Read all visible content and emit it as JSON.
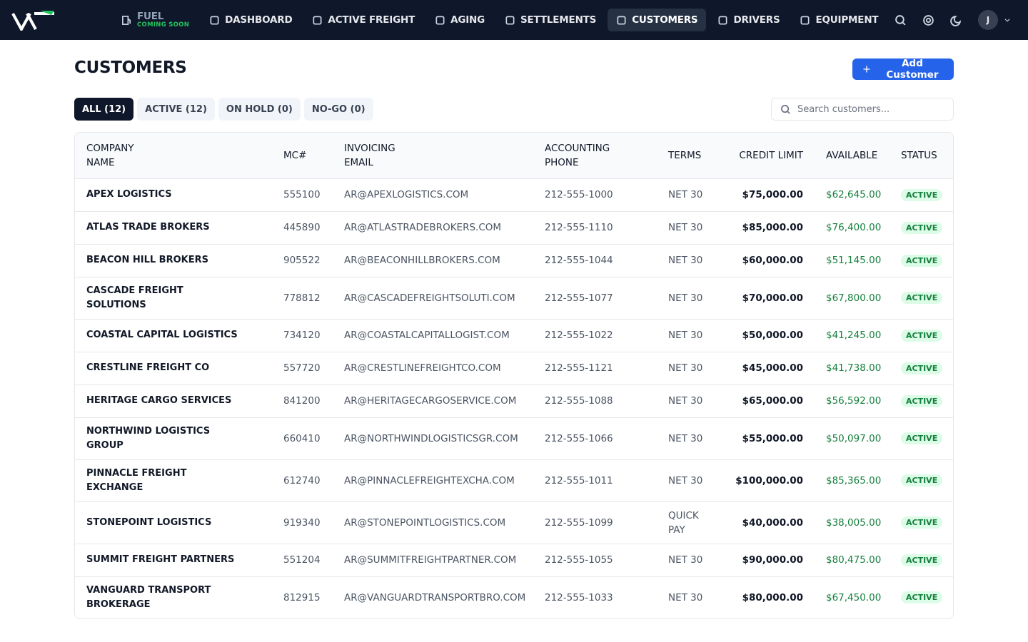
{
  "nav": {
    "fuel": {
      "label": "FUEL",
      "badge": "COMING SOON"
    },
    "items": [
      "DASHBOARD",
      "ACTIVE FREIGHT",
      "AGING",
      "SETTLEMENTS",
      "CUSTOMERS",
      "DRIVERS",
      "EQUIPMENT"
    ],
    "active": "CUSTOMERS",
    "avatar": "J"
  },
  "header": {
    "title": "CUSTOMERS",
    "button": "Add Customer"
  },
  "tabs": [
    "ALL (12)",
    "ACTIVE (12)",
    "ON HOLD (0)",
    "NO-GO (0)"
  ],
  "search": {
    "placeholder": "Search customers..."
  },
  "table": {
    "columns": [
      "COMPANY NAME",
      "MC#",
      "INVOICING EMAIL",
      "ACCOUNTING PHONE",
      "TERMS",
      "CREDIT LIMIT",
      "AVAILABLE",
      "STATUS"
    ],
    "rows": [
      [
        "APEX LOGISTICS",
        "555100",
        "AR@APEXLOGISTICS.COM",
        "212-555-1000",
        "NET 30",
        "$75,000.00",
        "$62,645.00",
        "ACTIVE"
      ],
      [
        "ATLAS TRADE BROKERS",
        "445890",
        "AR@ATLASTRADEBROKERS.COM",
        "212-555-1110",
        "NET 30",
        "$85,000.00",
        "$76,400.00",
        "ACTIVE"
      ],
      [
        "BEACON HILL BROKERS",
        "905522",
        "AR@BEACONHILLBROKERS.COM",
        "212-555-1044",
        "NET 30",
        "$60,000.00",
        "$51,145.00",
        "ACTIVE"
      ],
      [
        "CASCADE FREIGHT SOLUTIONS",
        "778812",
        "AR@CASCADEFREIGHTSOLUTI.COM",
        "212-555-1077",
        "NET 30",
        "$70,000.00",
        "$67,800.00",
        "ACTIVE"
      ],
      [
        "COASTAL CAPITAL LOGISTICS",
        "734120",
        "AR@COASTALCAPITALLOGIST.COM",
        "212-555-1022",
        "NET 30",
        "$50,000.00",
        "$41,245.00",
        "ACTIVE"
      ],
      [
        "CRESTLINE FREIGHT CO",
        "557720",
        "AR@CRESTLINEFREIGHTCO.COM",
        "212-555-1121",
        "NET 30",
        "$45,000.00",
        "$41,738.00",
        "ACTIVE"
      ],
      [
        "HERITAGE CARGO SERVICES",
        "841200",
        "AR@HERITAGECARGOSERVICE.COM",
        "212-555-1088",
        "NET 30",
        "$65,000.00",
        "$56,592.00",
        "ACTIVE"
      ],
      [
        "NORTHWIND LOGISTICS GROUP",
        "660410",
        "AR@NORTHWINDLOGISTICSGR.COM",
        "212-555-1066",
        "NET 30",
        "$55,000.00",
        "$50,097.00",
        "ACTIVE"
      ],
      [
        "PINNACLE FREIGHT EXCHANGE",
        "612740",
        "AR@PINNACLEFREIGHTEXCHA.COM",
        "212-555-1011",
        "NET 30",
        "$100,000.00",
        "$85,365.00",
        "ACTIVE"
      ],
      [
        "STONEPOINT LOGISTICS",
        "919340",
        "AR@STONEPOINTLOGISTICS.COM",
        "212-555-1099",
        "QUICK PAY",
        "$40,000.00",
        "$38,005.00",
        "ACTIVE"
      ],
      [
        "SUMMIT FREIGHT PARTNERS",
        "551204",
        "AR@SUMMITFREIGHTPARTNER.COM",
        "212-555-1055",
        "NET 30",
        "$90,000.00",
        "$80,475.00",
        "ACTIVE"
      ],
      [
        "VANGUARD TRANSPORT BROKERAGE",
        "812915",
        "AR@VANGUARDTRANSPORTBRO.COM",
        "212-555-1033",
        "NET 30",
        "$80,000.00",
        "$67,450.00",
        "ACTIVE"
      ]
    ]
  }
}
